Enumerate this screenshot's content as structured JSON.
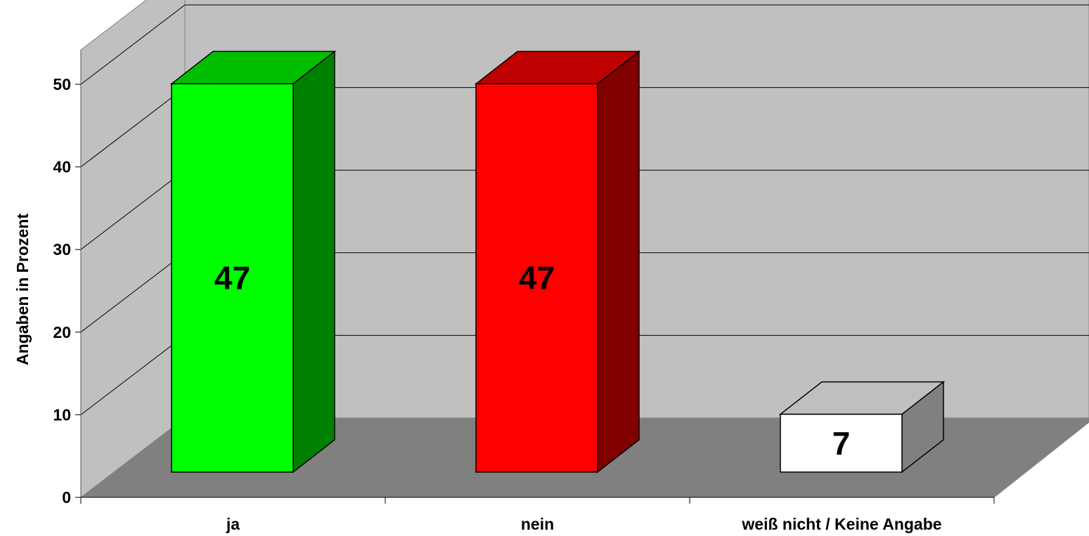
{
  "chart_data": {
    "type": "bar",
    "style": "3d-column",
    "categories": [
      "ja",
      "nein",
      "weiß nicht / Keine Angabe"
    ],
    "values": [
      47,
      47,
      7
    ],
    "data_labels": [
      "47",
      "47",
      "7"
    ],
    "ylabel": "Angaben in Prozent",
    "xlabel": "",
    "ylim": [
      0,
      50
    ],
    "yticks": [
      0,
      10,
      20,
      30,
      40,
      50
    ],
    "ytick_labels": [
      "0",
      "10",
      "20",
      "30",
      "40",
      "50"
    ],
    "grid": true,
    "legend": "none",
    "colors": {
      "bars": [
        {
          "front": "#00ff00",
          "top": "#00bf00",
          "side": "#008000"
        },
        {
          "front": "#ff0000",
          "top": "#bf0000",
          "side": "#800000"
        },
        {
          "front": "#ffffff",
          "top": "#bfbfbf",
          "side": "#808080"
        }
      ],
      "back_wall": "#c0c0c0",
      "side_wall": "#c0c0c0",
      "floor": "#808080",
      "gridline": "#000000"
    }
  }
}
